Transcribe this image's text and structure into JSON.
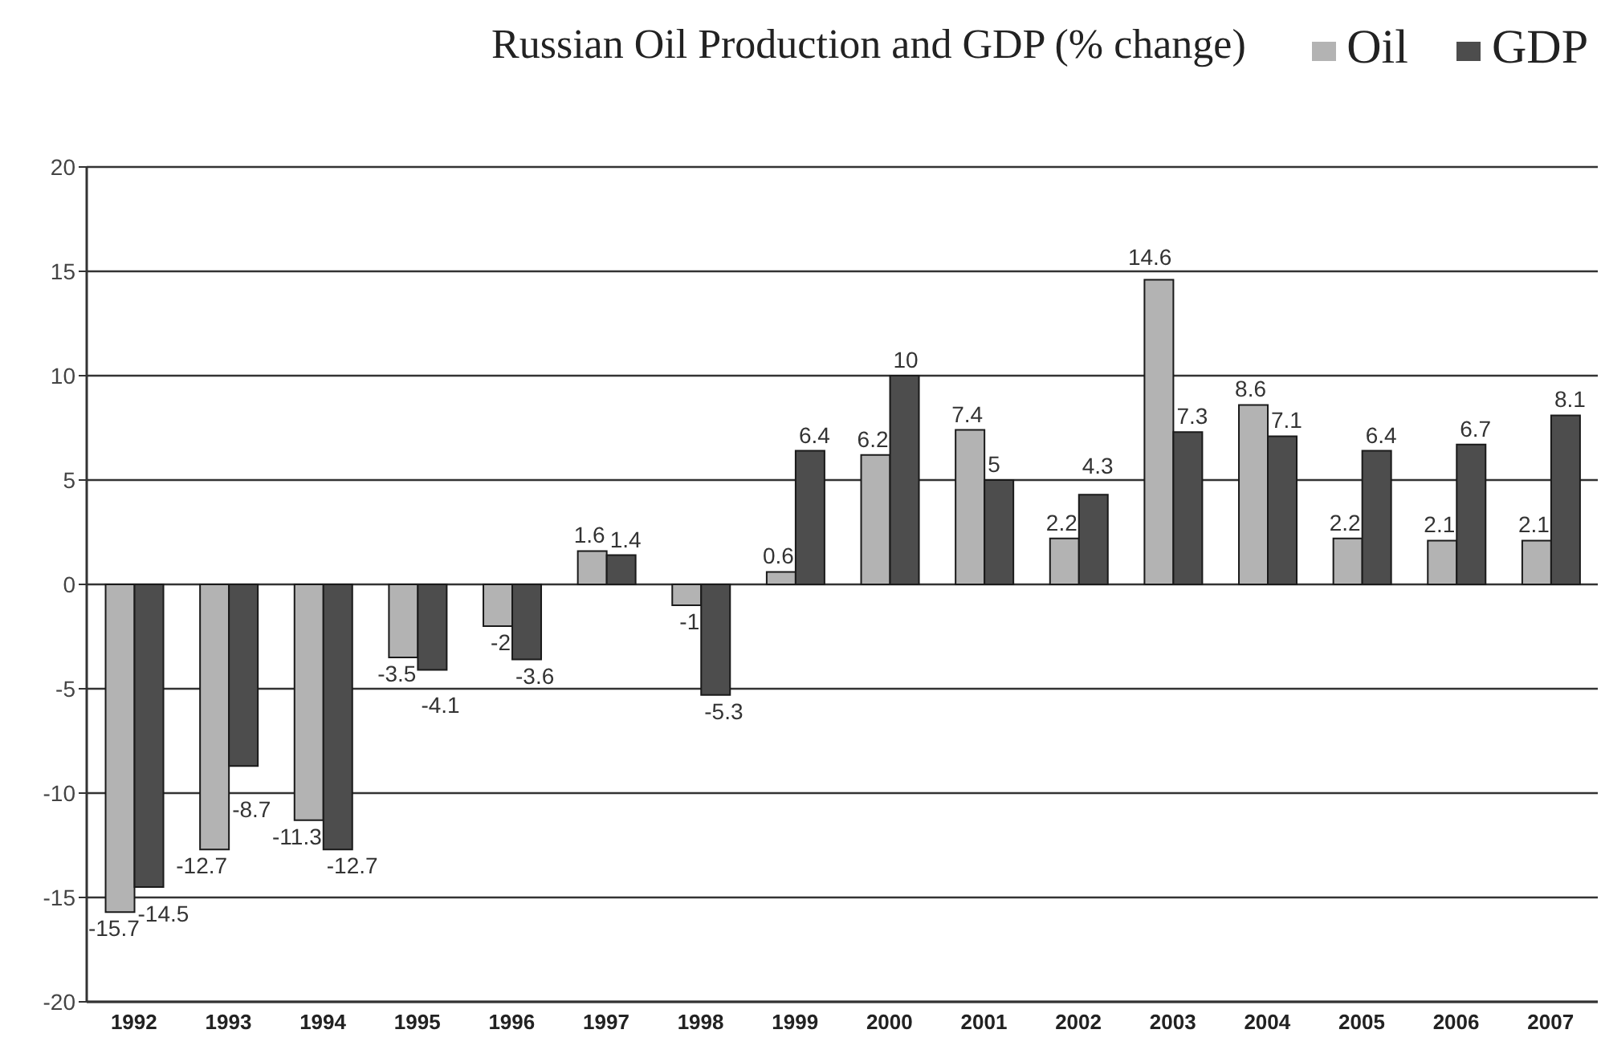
{
  "chart_data": {
    "type": "bar",
    "title": "Russian Oil Production and GDP (% change)",
    "categories": [
      "1992",
      "1993",
      "1994",
      "1995",
      "1996",
      "1997",
      "1998",
      "1999",
      "2000",
      "2001",
      "2002",
      "2003",
      "2004",
      "2005",
      "2006",
      "2007"
    ],
    "series": [
      {
        "name": "Oil",
        "color": "#b3b3b3",
        "values": [
          -15.7,
          -12.7,
          -11.3,
          -3.5,
          -2,
          1.6,
          -1,
          0.6,
          6.2,
          7.4,
          2.2,
          14.6,
          8.6,
          2.2,
          2.1,
          2.1
        ]
      },
      {
        "name": "GDP",
        "color": "#4d4d4d",
        "values": [
          -14.5,
          -8.7,
          -12.7,
          -4.1,
          -3.6,
          1.4,
          -5.3,
          6.4,
          10,
          5,
          4.3,
          7.3,
          7.1,
          6.4,
          6.7,
          8.1
        ]
      }
    ],
    "ylim": [
      -20,
      20
    ],
    "yticks": [
      -20,
      -15,
      -10,
      -5,
      0,
      5,
      10,
      15,
      20
    ],
    "grid": "y",
    "legend": "top right",
    "data_labels": true
  }
}
